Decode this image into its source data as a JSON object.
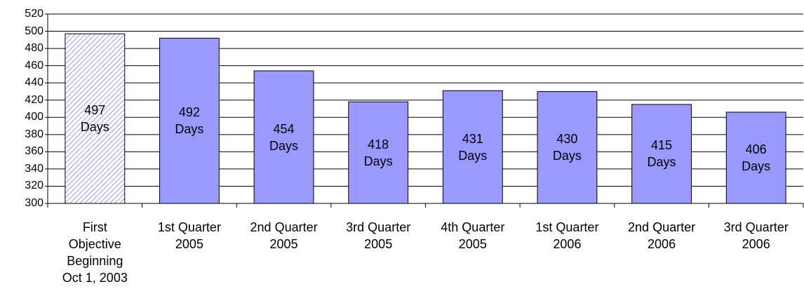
{
  "chart_data": {
    "type": "bar",
    "categories": [
      "First\nObjective\nBeginning\nOct 1, 2003",
      "1st Quarter\n2005",
      "2nd Quarter\n2005",
      "3rd Quarter\n2005",
      "4th Quarter\n2005",
      "1st Quarter\n2006",
      "2nd Quarter\n2006",
      "3rd Quarter\n2006"
    ],
    "values": [
      497,
      492,
      454,
      418,
      431,
      430,
      415,
      406
    ],
    "value_labels": [
      "497\nDays",
      "492\nDays",
      "454\nDays",
      "418\nDays",
      "431\nDays",
      "430\nDays",
      "415\nDays",
      "406\nDays"
    ],
    "color": "#9999ff",
    "hatched_bars": [
      0
    ],
    "ylim": [
      300,
      520
    ],
    "yticks": [
      300,
      320,
      340,
      360,
      380,
      400,
      420,
      440,
      460,
      480,
      500,
      520
    ],
    "grid": true
  }
}
